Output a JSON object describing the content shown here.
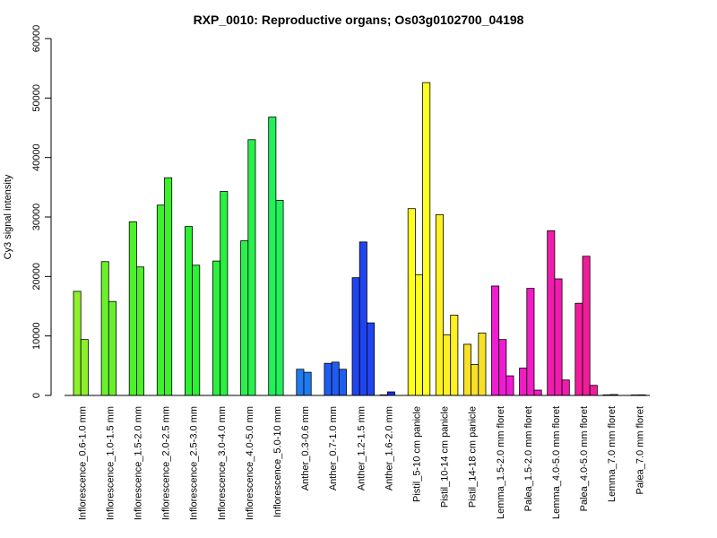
{
  "chart_data": {
    "type": "bar",
    "title": "RXP_0010: Reproductive organs; Os03g0102700_04198",
    "xlabel": "",
    "ylabel": "Cy3 signal intensity",
    "ylim": [
      0,
      60000
    ],
    "yticks": [
      0,
      10000,
      20000,
      30000,
      40000,
      50000,
      60000
    ],
    "grid": false,
    "legend": "none",
    "categories": [
      "Inflorescence_0.6-1.0 mm",
      "Inflorescence_1.0-1.5 mm",
      "Inflorescence_1.5-2.0 mm",
      "Inflorescence_2.0-2.5 mm",
      "Inflorescence_2.5-3.0 mm",
      "Inflorescence_3.0-4.0 mm",
      "Inflorescence_4.0-5.0 mm",
      "Inflorescence_5.0-10 mm",
      "Anther_0.3-0.6 mm",
      "Anther_0.7-1.0 mm",
      "Anther_1.2-1.5 mm",
      "Anther_1.6-2.0 mm",
      "Pistil_5-10 cm panicle",
      "Pistil_10-14 cm panicle",
      "Pistil_14-18 cm panicle",
      "Lemma_1.5-2.0 mm floret",
      "Palea_1.5-2.0 mm floret",
      "Lemma_4.0-5.0 mm floret",
      "Palea_4.0-5.0 mm floret",
      "Lemma_7.0 mm floret",
      "Palea_7.0 mm floret"
    ],
    "groups": [
      {
        "color": "#8cf02a",
        "values": [
          17500,
          9400
        ]
      },
      {
        "color": "#6af02a",
        "values": [
          22500,
          15800
        ]
      },
      {
        "color": "#4ef02a",
        "values": [
          29200,
          21600
        ]
      },
      {
        "color": "#3cf02a",
        "values": [
          32000,
          36600
        ]
      },
      {
        "color": "#2cf032",
        "values": [
          28400,
          21900
        ]
      },
      {
        "color": "#2af040",
        "values": [
          22600,
          34300
        ]
      },
      {
        "color": "#2af04e",
        "values": [
          26000,
          43000
        ]
      },
      {
        "color": "#22f05c",
        "values": [
          46800,
          32800
        ]
      },
      {
        "color": "#1f7cf0",
        "values": [
          4400,
          3900
        ]
      },
      {
        "color": "#1f5cf0",
        "values": [
          5400,
          5600,
          4400
        ]
      },
      {
        "color": "#1f44f0",
        "values": [
          19800,
          25800,
          12200
        ]
      },
      {
        "color": "#1c2cf0",
        "values": [
          100,
          600
        ]
      },
      {
        "color": "#ffff22",
        "values": [
          31400,
          20300,
          52600
        ]
      },
      {
        "color": "#fff022",
        "values": [
          30400,
          10200,
          13500
        ]
      },
      {
        "color": "#f7e025",
        "values": [
          8600,
          5200,
          10500
        ]
      },
      {
        "color": "#f01cd2",
        "values": [
          18400,
          9400,
          3300
        ]
      },
      {
        "color": "#f01cc4",
        "values": [
          4600,
          18000,
          900
        ]
      },
      {
        "color": "#f01cae",
        "values": [
          27700,
          19600,
          2600
        ]
      },
      {
        "color": "#f01c9a",
        "values": [
          15500,
          23400,
          1700
        ]
      },
      {
        "color": "#f01c8a",
        "values": [
          100,
          150
        ]
      },
      {
        "color": "#f01c7a",
        "values": [
          80,
          100
        ]
      }
    ]
  }
}
